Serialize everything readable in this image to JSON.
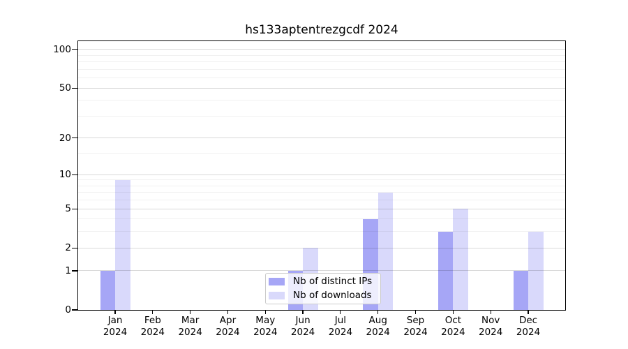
{
  "title": "hs133aptentrezgcdf 2024",
  "colors": {
    "background": "#ffffff",
    "text": "#000000",
    "spine": "#000000",
    "grid_major": "#d9d9d9",
    "grid_minor": "#f1f1f1",
    "legend_border": "#cccccc"
  },
  "chart_data": {
    "type": "bar",
    "title": "hs133aptentrezgcdf 2024",
    "categories": [
      "Jan",
      "Feb",
      "Mar",
      "Apr",
      "May",
      "Jun",
      "Jul",
      "Aug",
      "Sep",
      "Oct",
      "Nov",
      "Dec"
    ],
    "category_year": "2024",
    "series": [
      {
        "name": "Nb of distinct IPs",
        "color": "#a6a6f6",
        "values": [
          1,
          0,
          0,
          0,
          0,
          1,
          0,
          4,
          0,
          3,
          0,
          1
        ]
      },
      {
        "name": "Nb of downloads",
        "color": "#d9d9fb",
        "values": [
          9,
          0,
          0,
          0,
          0,
          2,
          0,
          7,
          0,
          5,
          0,
          3
        ]
      }
    ],
    "y_scale": "log1p",
    "y_axis": {
      "ticks": [
        0,
        1,
        2,
        5,
        10,
        20,
        50,
        100
      ],
      "minor_ticks": [
        3,
        4,
        6,
        7,
        8,
        9,
        15,
        30,
        40,
        60,
        70,
        80,
        90
      ],
      "ylim": [
        0,
        116
      ]
    },
    "xlabel": "",
    "ylabel": "",
    "grid": true,
    "grid_above_bars": true,
    "legend": {
      "position": "lower center",
      "entries": [
        "Nb of distinct IPs",
        "Nb of downloads"
      ]
    }
  }
}
